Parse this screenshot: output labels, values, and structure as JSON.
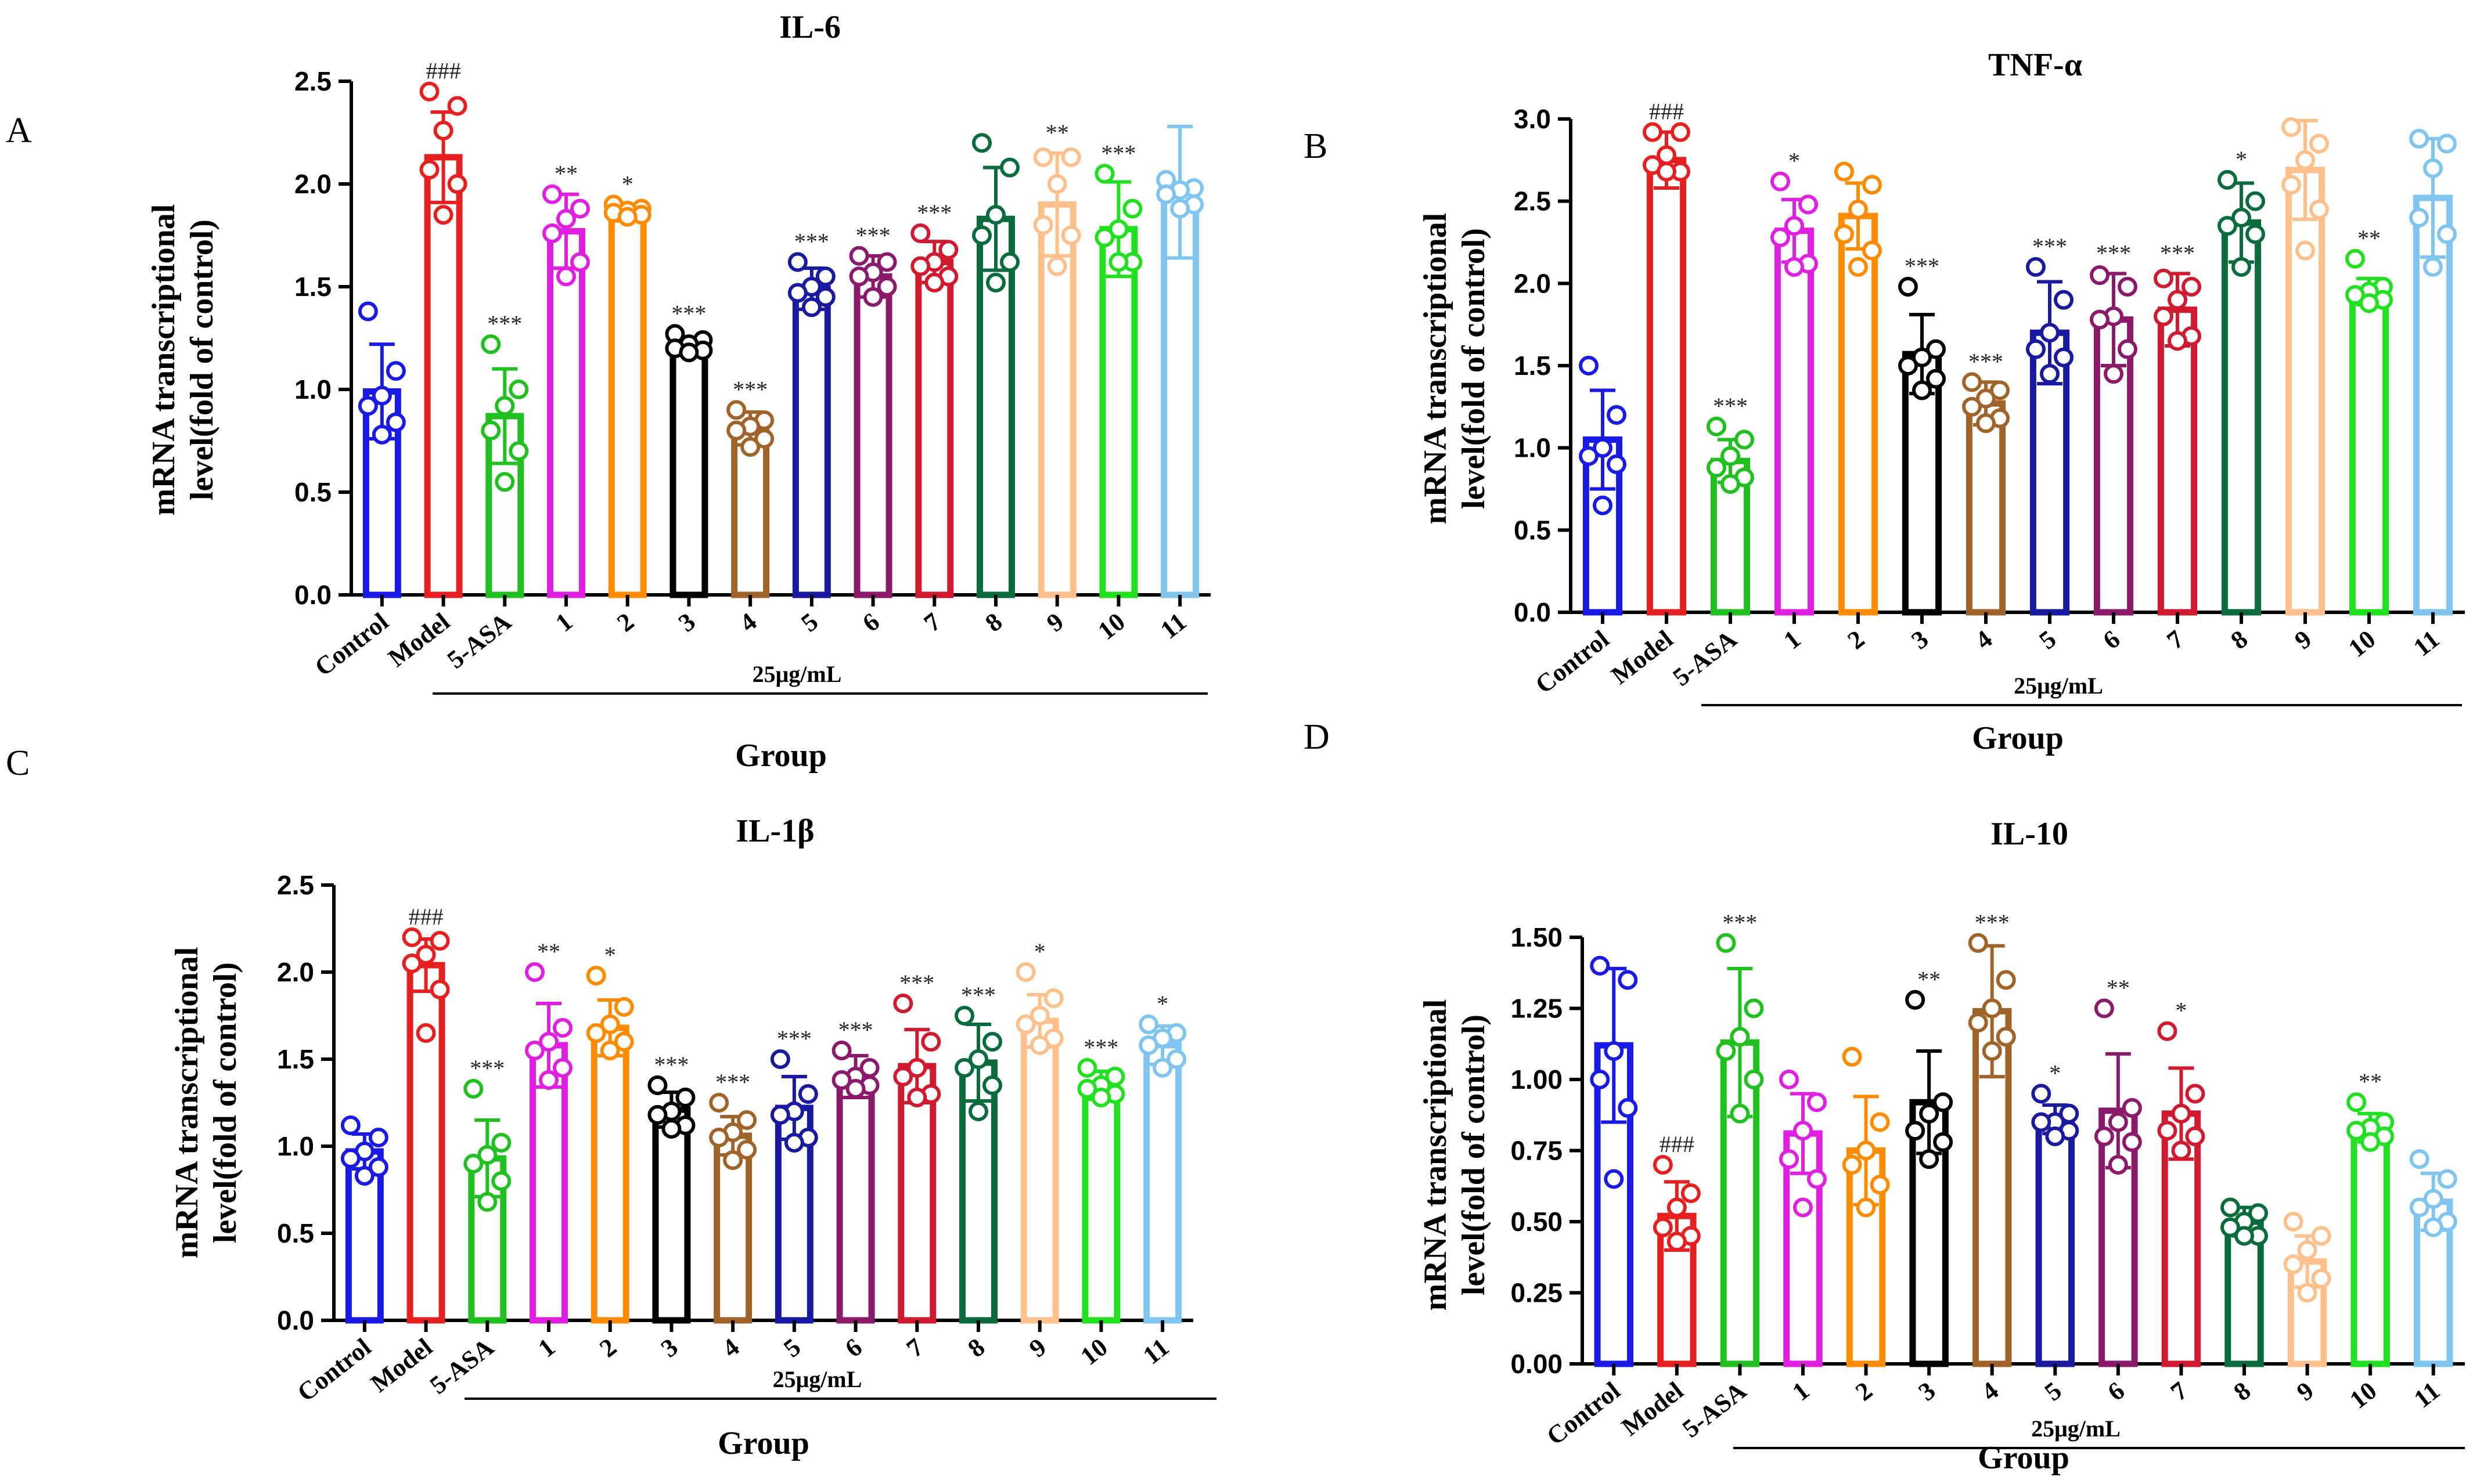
{
  "chart_data": [
    {
      "panel": "A",
      "type": "bar",
      "title": "IL-6",
      "xlabel": "Group",
      "ylabel": [
        "mRNA transcriptional",
        "level(fold of control)"
      ],
      "ylim": [
        0,
        2.5
      ],
      "yticks": [
        "0.0",
        "0.5",
        "1.0",
        "1.5",
        "2.0",
        "2.5"
      ],
      "concentration_label": "25μg/mL",
      "categories": [
        "Control",
        "Model",
        "5-ASA",
        "1",
        "2",
        "3",
        "4",
        "5",
        "6",
        "7",
        "8",
        "9",
        "10",
        "11"
      ],
      "values": [
        0.99,
        2.13,
        0.87,
        1.77,
        1.86,
        1.21,
        0.81,
        1.49,
        1.55,
        1.62,
        1.83,
        1.9,
        1.78,
        1.96
      ],
      "errors": [
        0.23,
        0.22,
        0.23,
        0.18,
        0.04,
        0.04,
        0.08,
        0.1,
        0.1,
        0.1,
        0.25,
        0.25,
        0.23,
        0.32
      ],
      "points": [
        [
          1.38,
          1.09,
          0.97,
          0.92,
          0.84,
          0.78
        ],
        [
          2.45,
          2.38,
          2.26,
          2.07,
          2.0,
          1.85
        ],
        [
          1.22,
          1.0,
          0.92,
          0.8,
          0.7,
          0.55
        ],
        [
          1.95,
          1.88,
          1.83,
          1.76,
          1.62,
          1.55
        ],
        [
          1.9,
          1.88,
          1.87,
          1.86,
          1.85,
          1.84
        ],
        [
          1.27,
          1.24,
          1.22,
          1.2,
          1.19,
          1.18
        ],
        [
          0.9,
          0.85,
          0.82,
          0.8,
          0.76,
          0.72
        ],
        [
          1.62,
          1.55,
          1.5,
          1.47,
          1.45,
          1.4
        ],
        [
          1.65,
          1.62,
          1.57,
          1.55,
          1.5,
          1.45
        ],
        [
          1.76,
          1.68,
          1.62,
          1.6,
          1.55,
          1.52
        ],
        [
          2.2,
          2.08,
          1.85,
          1.75,
          1.62,
          1.52
        ],
        [
          2.13,
          2.13,
          2.0,
          1.8,
          1.75,
          1.6
        ],
        [
          2.05,
          1.88,
          1.78,
          1.74,
          1.62,
          1.62
        ],
        [
          2.02,
          1.98,
          1.97,
          1.95,
          1.9,
          1.88
        ]
      ],
      "significance": [
        "",
        "###",
        "***",
        "**",
        "*",
        "***",
        "***",
        "***",
        "***",
        "***",
        "",
        "**",
        "***",
        ""
      ],
      "colors": [
        "#1a1ae6",
        "#e62020",
        "#20c020",
        "#e020e0",
        "#ff8c00",
        "#000000",
        "#a0642a",
        "#1a1aa0",
        "#8b1a6b",
        "#d01a30",
        "#0a6b3c",
        "#ffc08c",
        "#20e020",
        "#80c4f0"
      ]
    },
    {
      "panel": "B",
      "type": "bar",
      "title": "TNF-α",
      "xlabel": "Group",
      "ylabel": [
        "mRNA transcriptional",
        "level(fold of control)"
      ],
      "ylim": [
        0,
        3.0
      ],
      "yticks": [
        "0.0",
        "0.5",
        "1.0",
        "1.5",
        "2.0",
        "2.5",
        "3.0"
      ],
      "concentration_label": "25μg/mL",
      "categories": [
        "Control",
        "Model",
        "5-ASA",
        "1",
        "2",
        "3",
        "4",
        "5",
        "6",
        "7",
        "8",
        "9",
        "10",
        "11"
      ],
      "values": [
        1.05,
        2.75,
        0.92,
        2.32,
        2.41,
        1.57,
        1.27,
        1.7,
        1.78,
        1.84,
        2.37,
        2.69,
        1.95,
        2.52
      ],
      "errors": [
        0.3,
        0.17,
        0.13,
        0.19,
        0.2,
        0.24,
        0.13,
        0.31,
        0.28,
        0.22,
        0.24,
        0.3,
        0.08,
        0.36
      ],
      "points": [
        [
          1.5,
          1.2,
          1.0,
          0.95,
          0.9,
          0.65
        ],
        [
          2.92,
          2.92,
          2.78,
          2.72,
          2.68,
          2.68
        ],
        [
          1.13,
          1.05,
          0.95,
          0.88,
          0.82,
          0.78
        ],
        [
          2.62,
          2.48,
          2.35,
          2.28,
          2.12,
          2.1
        ],
        [
          2.68,
          2.6,
          2.45,
          2.3,
          2.2,
          2.1
        ],
        [
          1.98,
          1.6,
          1.55,
          1.5,
          1.42,
          1.35
        ],
        [
          1.4,
          1.35,
          1.3,
          1.25,
          1.18,
          1.15
        ],
        [
          2.1,
          1.9,
          1.7,
          1.6,
          1.55,
          1.45
        ],
        [
          2.05,
          1.98,
          1.8,
          1.78,
          1.6,
          1.45
        ],
        [
          2.03,
          1.98,
          1.9,
          1.8,
          1.68,
          1.65
        ],
        [
          2.63,
          2.5,
          2.4,
          2.35,
          2.3,
          2.1
        ],
        [
          2.95,
          2.85,
          2.75,
          2.6,
          2.45,
          2.2
        ],
        [
          2.15,
          1.98,
          1.95,
          1.93,
          1.9,
          1.88
        ],
        [
          2.88,
          2.85,
          2.7,
          2.4,
          2.3,
          2.1
        ]
      ],
      "significance": [
        "",
        "###",
        "***",
        "*",
        "",
        "***",
        "***",
        "***",
        "***",
        "***",
        "*",
        "",
        "**",
        ""
      ],
      "colors": [
        "#1a1ae6",
        "#e62020",
        "#20c020",
        "#e020e0",
        "#ff8c00",
        "#000000",
        "#a0642a",
        "#1a1aa0",
        "#8b1a6b",
        "#d01a30",
        "#0a6b3c",
        "#ffc08c",
        "#20e020",
        "#80c4f0"
      ]
    },
    {
      "panel": "C",
      "type": "bar",
      "title": "IL-1β",
      "xlabel": "Group",
      "ylabel": [
        "mRNA transcriptional",
        "level(fold of control)"
      ],
      "ylim": [
        0,
        2.5
      ],
      "yticks": [
        "0.0",
        "0.5",
        "1.0",
        "1.5",
        "2.0",
        "2.5"
      ],
      "concentration_label": "25μg/mL",
      "categories": [
        "Control",
        "Model",
        "5-ASA",
        "1",
        "2",
        "3",
        "4",
        "5",
        "6",
        "7",
        "8",
        "9",
        "10",
        "11"
      ],
      "values": [
        0.97,
        2.04,
        0.93,
        1.58,
        1.68,
        1.21,
        1.06,
        1.22,
        1.4,
        1.46,
        1.48,
        1.72,
        1.35,
        1.58
      ],
      "errors": [
        0.1,
        0.15,
        0.22,
        0.24,
        0.16,
        0.1,
        0.11,
        0.18,
        0.12,
        0.21,
        0.22,
        0.15,
        0.08,
        0.11
      ],
      "points": [
        [
          1.12,
          1.05,
          0.97,
          0.93,
          0.88,
          0.83
        ],
        [
          2.2,
          2.18,
          2.1,
          2.05,
          1.9,
          1.65
        ],
        [
          1.33,
          1.02,
          0.95,
          0.9,
          0.8,
          0.68
        ],
        [
          2.0,
          1.68,
          1.6,
          1.55,
          1.45,
          1.38
        ],
        [
          1.98,
          1.8,
          1.7,
          1.65,
          1.6,
          1.55
        ],
        [
          1.35,
          1.28,
          1.2,
          1.18,
          1.12,
          1.1
        ],
        [
          1.25,
          1.15,
          1.08,
          1.05,
          0.98,
          0.92
        ],
        [
          1.5,
          1.3,
          1.2,
          1.18,
          1.05,
          1.02
        ],
        [
          1.55,
          1.45,
          1.4,
          1.38,
          1.35,
          1.33
        ],
        [
          1.82,
          1.6,
          1.45,
          1.4,
          1.3,
          1.28
        ],
        [
          1.75,
          1.6,
          1.5,
          1.45,
          1.35,
          1.2
        ],
        [
          2.0,
          1.85,
          1.75,
          1.7,
          1.62,
          1.58
        ],
        [
          1.45,
          1.4,
          1.35,
          1.33,
          1.3,
          1.28
        ],
        [
          1.7,
          1.65,
          1.62,
          1.58,
          1.5,
          1.45
        ]
      ],
      "significance": [
        "",
        "###",
        "***",
        "**",
        "*",
        "***",
        "***",
        "***",
        "***",
        "***",
        "***",
        "*",
        "***",
        "*"
      ],
      "colors": [
        "#1a1ae6",
        "#e62020",
        "#20c020",
        "#e020e0",
        "#ff8c00",
        "#000000",
        "#a0642a",
        "#1a1aa0",
        "#8b1a6b",
        "#d01a30",
        "#0a6b3c",
        "#ffc08c",
        "#20e020",
        "#80c4f0"
      ]
    },
    {
      "panel": "D",
      "type": "bar",
      "title": "IL-10",
      "xlabel": "Group",
      "ylabel": [
        "mRNA transcriptional",
        "level(fold of control)"
      ],
      "ylim": [
        0,
        1.5
      ],
      "yticks": [
        "0.00",
        "0.25",
        "0.50",
        "0.75",
        "1.00",
        "1.25",
        "1.50"
      ],
      "concentration_label": "25μg/mL",
      "categories": [
        "Control",
        "Model",
        "5-ASA",
        "1",
        "2",
        "3",
        "4",
        "5",
        "6",
        "7",
        "8",
        "9",
        "10",
        "11"
      ],
      "values": [
        1.12,
        0.52,
        1.13,
        0.81,
        0.75,
        0.92,
        1.24,
        0.86,
        0.89,
        0.88,
        0.5,
        0.36,
        0.83,
        0.57
      ],
      "errors": [
        0.27,
        0.12,
        0.26,
        0.14,
        0.19,
        0.18,
        0.23,
        0.05,
        0.2,
        0.16,
        0.05,
        0.09,
        0.05,
        0.1
      ],
      "points": [
        [
          1.4,
          1.35,
          1.1,
          1.0,
          0.9,
          0.65
        ],
        [
          0.7,
          0.6,
          0.55,
          0.48,
          0.45,
          0.43
        ],
        [
          1.48,
          1.25,
          1.15,
          1.1,
          1.0,
          0.88
        ],
        [
          1.0,
          0.92,
          0.82,
          0.72,
          0.65,
          0.55
        ],
        [
          1.08,
          0.85,
          0.75,
          0.7,
          0.63,
          0.55
        ],
        [
          1.28,
          0.92,
          0.88,
          0.82,
          0.78,
          0.72
        ],
        [
          1.48,
          1.35,
          1.25,
          1.2,
          1.15,
          1.1
        ],
        [
          0.95,
          0.88,
          0.85,
          0.85,
          0.82,
          0.8
        ],
        [
          1.25,
          0.9,
          0.85,
          0.8,
          0.78,
          0.7
        ],
        [
          1.17,
          0.95,
          0.88,
          0.82,
          0.8,
          0.75
        ],
        [
          0.55,
          0.53,
          0.5,
          0.48,
          0.45,
          0.45
        ],
        [
          0.5,
          0.45,
          0.4,
          0.35,
          0.3,
          0.25
        ],
        [
          0.92,
          0.85,
          0.83,
          0.82,
          0.8,
          0.78
        ],
        [
          0.72,
          0.65,
          0.58,
          0.55,
          0.5,
          0.48
        ]
      ],
      "significance": [
        "",
        "###",
        "***",
        "",
        "",
        "**",
        "***",
        "*",
        "**",
        "*",
        "",
        "",
        "**",
        ""
      ],
      "colors": [
        "#1a1ae6",
        "#e62020",
        "#20c020",
        "#e020e0",
        "#ff8c00",
        "#000000",
        "#a0642a",
        "#1a1aa0",
        "#8b1a6b",
        "#d01a30",
        "#0a6b3c",
        "#ffc08c",
        "#20e020",
        "#80c4f0"
      ]
    }
  ]
}
